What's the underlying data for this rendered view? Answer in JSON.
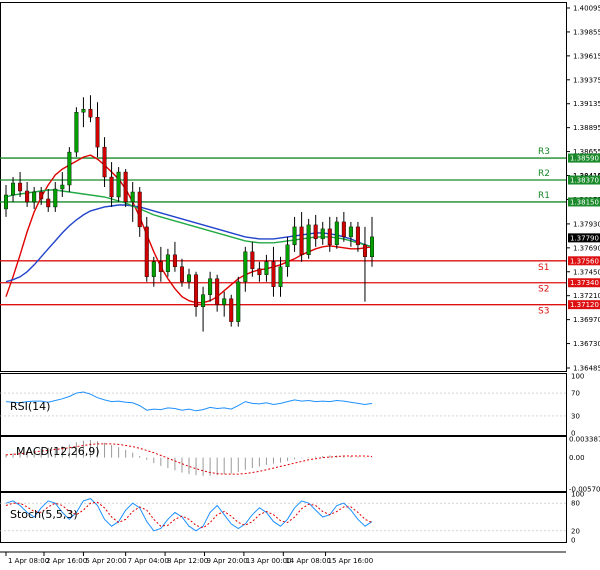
{
  "chart_data": {
    "type": "candlestick",
    "price_axis": {
      "ticks": [
        "1.40095",
        "1.39855",
        "1.39615",
        "1.39375",
        "1.39135",
        "1.38895",
        "1.38655",
        "1.38415",
        "1.38175",
        "1.37930",
        "1.37690",
        "1.37450",
        "1.37210",
        "1.36970",
        "1.36730",
        "1.36485"
      ],
      "ylim": [
        1.36485,
        1.40095
      ]
    },
    "time_axis": {
      "ticks": [
        "1 Apr 08:00",
        "2 Apr 16:00",
        "5 Apr 20:00",
        "7 Apr 04:00",
        "8 Apr 12:00",
        "9 Apr 20:00",
        "13 Apr 00:00",
        "14 Apr 08:00",
        "15 Apr 16:00"
      ]
    },
    "candles": [
      {
        "o": 1.3808,
        "h": 1.3832,
        "l": 1.38,
        "c": 1.3822
      },
      {
        "o": 1.3822,
        "h": 1.384,
        "l": 1.3815,
        "c": 1.3834
      },
      {
        "o": 1.3834,
        "h": 1.3845,
        "l": 1.382,
        "c": 1.3826
      },
      {
        "o": 1.3826,
        "h": 1.3835,
        "l": 1.381,
        "c": 1.3815
      },
      {
        "o": 1.3815,
        "h": 1.383,
        "l": 1.3808,
        "c": 1.3825
      },
      {
        "o": 1.3825,
        "h": 1.383,
        "l": 1.3812,
        "c": 1.3818
      },
      {
        "o": 1.3818,
        "h": 1.3828,
        "l": 1.3805,
        "c": 1.381
      },
      {
        "o": 1.381,
        "h": 1.3835,
        "l": 1.3805,
        "c": 1.3828
      },
      {
        "o": 1.3828,
        "h": 1.3845,
        "l": 1.382,
        "c": 1.3832
      },
      {
        "o": 1.3832,
        "h": 1.387,
        "l": 1.3825,
        "c": 1.3865
      },
      {
        "o": 1.3865,
        "h": 1.391,
        "l": 1.386,
        "c": 1.3905
      },
      {
        "o": 1.3905,
        "h": 1.392,
        "l": 1.389,
        "c": 1.3908
      },
      {
        "o": 1.3908,
        "h": 1.3922,
        "l": 1.3895,
        "c": 1.39
      },
      {
        "o": 1.39,
        "h": 1.3915,
        "l": 1.386,
        "c": 1.387
      },
      {
        "o": 1.387,
        "h": 1.388,
        "l": 1.383,
        "c": 1.384
      },
      {
        "o": 1.384,
        "h": 1.3855,
        "l": 1.381,
        "c": 1.382
      },
      {
        "o": 1.382,
        "h": 1.385,
        "l": 1.3815,
        "c": 1.3845
      },
      {
        "o": 1.3845,
        "h": 1.3848,
        "l": 1.381,
        "c": 1.3815
      },
      {
        "o": 1.3815,
        "h": 1.3835,
        "l": 1.3795,
        "c": 1.3825
      },
      {
        "o": 1.3825,
        "h": 1.383,
        "l": 1.378,
        "c": 1.379
      },
      {
        "o": 1.379,
        "h": 1.38,
        "l": 1.3735,
        "c": 1.374
      },
      {
        "o": 1.374,
        "h": 1.376,
        "l": 1.373,
        "c": 1.3755
      },
      {
        "o": 1.3755,
        "h": 1.377,
        "l": 1.3735,
        "c": 1.3745
      },
      {
        "o": 1.3745,
        "h": 1.3768,
        "l": 1.374,
        "c": 1.3762
      },
      {
        "o": 1.3762,
        "h": 1.3775,
        "l": 1.3745,
        "c": 1.375
      },
      {
        "o": 1.375,
        "h": 1.3758,
        "l": 1.373,
        "c": 1.3735
      },
      {
        "o": 1.3735,
        "h": 1.3748,
        "l": 1.3728,
        "c": 1.3742
      },
      {
        "o": 1.3742,
        "h": 1.3745,
        "l": 1.37,
        "c": 1.371
      },
      {
        "o": 1.371,
        "h": 1.373,
        "l": 1.3685,
        "c": 1.3722
      },
      {
        "o": 1.3722,
        "h": 1.3745,
        "l": 1.3715,
        "c": 1.3738
      },
      {
        "o": 1.3738,
        "h": 1.3742,
        "l": 1.3705,
        "c": 1.3712
      },
      {
        "o": 1.3712,
        "h": 1.3725,
        "l": 1.37,
        "c": 1.3718
      },
      {
        "o": 1.3718,
        "h": 1.3722,
        "l": 1.369,
        "c": 1.3695
      },
      {
        "o": 1.3695,
        "h": 1.374,
        "l": 1.369,
        "c": 1.3735
      },
      {
        "o": 1.3735,
        "h": 1.377,
        "l": 1.3725,
        "c": 1.3765
      },
      {
        "o": 1.3765,
        "h": 1.3775,
        "l": 1.374,
        "c": 1.3748
      },
      {
        "o": 1.3748,
        "h": 1.3755,
        "l": 1.3735,
        "c": 1.3742
      },
      {
        "o": 1.3742,
        "h": 1.3762,
        "l": 1.3735,
        "c": 1.3755
      },
      {
        "o": 1.3755,
        "h": 1.377,
        "l": 1.372,
        "c": 1.373
      },
      {
        "o": 1.373,
        "h": 1.376,
        "l": 1.372,
        "c": 1.375
      },
      {
        "o": 1.375,
        "h": 1.378,
        "l": 1.374,
        "c": 1.3772
      },
      {
        "o": 1.3772,
        "h": 1.38,
        "l": 1.3765,
        "c": 1.379
      },
      {
        "o": 1.379,
        "h": 1.3805,
        "l": 1.3755,
        "c": 1.3762
      },
      {
        "o": 1.3762,
        "h": 1.3798,
        "l": 1.3758,
        "c": 1.3792
      },
      {
        "o": 1.3792,
        "h": 1.3802,
        "l": 1.377,
        "c": 1.3778
      },
      {
        "o": 1.3778,
        "h": 1.3795,
        "l": 1.3772,
        "c": 1.3788
      },
      {
        "o": 1.3788,
        "h": 1.38,
        "l": 1.3765,
        "c": 1.3772
      },
      {
        "o": 1.3772,
        "h": 1.38,
        "l": 1.3768,
        "c": 1.3795
      },
      {
        "o": 1.3795,
        "h": 1.3805,
        "l": 1.3775,
        "c": 1.378
      },
      {
        "o": 1.378,
        "h": 1.3795,
        "l": 1.377,
        "c": 1.379
      },
      {
        "o": 1.379,
        "h": 1.3795,
        "l": 1.3765,
        "c": 1.3772
      },
      {
        "o": 1.3772,
        "h": 1.379,
        "l": 1.3715,
        "c": 1.376
      },
      {
        "o": 1.376,
        "h": 1.38,
        "l": 1.375,
        "c": 1.378
      }
    ],
    "moving_averages": [
      {
        "color": "#e00000",
        "values": [
          1.372,
          1.374,
          1.3762,
          1.3785,
          1.3805,
          1.382,
          1.3832,
          1.3842,
          1.3848,
          1.3852,
          1.3856,
          1.386,
          1.3862,
          1.3858,
          1.3852,
          1.3845,
          1.3838,
          1.3828,
          1.3815,
          1.38,
          1.3782,
          1.3765,
          1.375,
          1.3738,
          1.3728,
          1.372,
          1.3716,
          1.3714,
          1.3714,
          1.3716,
          1.372,
          1.3726,
          1.3732,
          1.3738,
          1.3742,
          1.3745,
          1.3747,
          1.3748,
          1.375,
          1.3752,
          1.3755,
          1.3758,
          1.3762,
          1.3765,
          1.3768,
          1.377,
          1.3771,
          1.377,
          1.3769,
          1.3768,
          1.3768,
          1.3769,
          1.377
        ]
      },
      {
        "color": "#2244cc",
        "values": [
          1.3735,
          1.3737,
          1.374,
          1.3745,
          1.3752,
          1.376,
          1.3768,
          1.3776,
          1.3784,
          1.3791,
          1.3797,
          1.3802,
          1.3806,
          1.3808,
          1.381,
          1.3811,
          1.3812,
          1.3812,
          1.3811,
          1.381,
          1.3808,
          1.3806,
          1.3804,
          1.3802,
          1.38,
          1.3798,
          1.3796,
          1.3794,
          1.3792,
          1.379,
          1.3788,
          1.3786,
          1.3784,
          1.3782,
          1.378,
          1.3779,
          1.3778,
          1.3778,
          1.3778,
          1.3779,
          1.378,
          1.3781,
          1.3782,
          1.3783,
          1.3784,
          1.3784,
          1.3783,
          1.3782,
          1.378,
          1.3778,
          1.3775,
          1.3772,
          1.377
        ]
      },
      {
        "color": "#22aa44",
        "values": [
          1.382,
          1.3822,
          1.3823,
          1.3824,
          1.3825,
          1.3826,
          1.3827,
          1.3827,
          1.3826,
          1.3825,
          1.3824,
          1.3823,
          1.3822,
          1.3821,
          1.382,
          1.3818,
          1.3816,
          1.3814,
          1.3811,
          1.3808,
          1.3805,
          1.3802,
          1.38,
          1.3798,
          1.3796,
          1.3794,
          1.3792,
          1.379,
          1.3788,
          1.3786,
          1.3784,
          1.3782,
          1.378,
          1.3778,
          1.3776,
          1.3775,
          1.3774,
          1.3774,
          1.3774,
          1.3775,
          1.3776,
          1.3777,
          1.3778,
          1.3779,
          1.378,
          1.378,
          1.378,
          1.3779,
          1.3778,
          1.3776,
          1.3774,
          1.3772,
          1.377
        ]
      }
    ],
    "levels": [
      {
        "label": "R3",
        "value": 1.3859,
        "value_text": "1.38590",
        "color": "#1a8a2a"
      },
      {
        "label": "R2",
        "value": 1.3837,
        "value_text": "1.38370",
        "color": "#1a8a2a"
      },
      {
        "label": "R1",
        "value": 1.3815,
        "value_text": "1.38150",
        "color": "#1a8a2a"
      },
      {
        "label": "S1",
        "value": 1.3756,
        "value_text": "1.37560",
        "color": "#dd1111"
      },
      {
        "label": "S2",
        "value": 1.3734,
        "value_text": "1.37340",
        "color": "#dd1111"
      },
      {
        "label": "S3",
        "value": 1.3712,
        "value_text": "1.37120",
        "color": "#dd1111"
      }
    ],
    "current_price": {
      "value": 1.3779,
      "value_text": "1.37790"
    },
    "extra_price_label": "1.38410",
    "rsi": {
      "title": "RSI(14)",
      "ticks": [
        "100",
        "70",
        "30",
        "0"
      ],
      "ylim": [
        0,
        100
      ],
      "color": "#1e90ff",
      "values": [
        55,
        54,
        53,
        55,
        56,
        56,
        54,
        57,
        60,
        64,
        70,
        72,
        68,
        62,
        58,
        55,
        56,
        54,
        53,
        48,
        40,
        42,
        41,
        44,
        43,
        40,
        42,
        39,
        41,
        45,
        43,
        44,
        42,
        48,
        55,
        52,
        51,
        53,
        50,
        52,
        55,
        58,
        56,
        57,
        55,
        56,
        55,
        57,
        56,
        54,
        52,
        50,
        52
      ]
    },
    "macd": {
      "title": "MACD(12,26,9)",
      "ticks": [
        "0.003387",
        "0.00",
        "-0.005701"
      ],
      "ylim": [
        -0.005701,
        0.003387
      ],
      "hist_color": "#999999",
      "signal_color": "#e00000",
      "histogram": [
        0.0006,
        0.0008,
        0.001,
        0.0012,
        0.0014,
        0.0016,
        0.0018,
        0.0019,
        0.0021,
        0.0024,
        0.0028,
        0.0031,
        0.0032,
        0.003,
        0.0027,
        0.0023,
        0.0019,
        0.0014,
        0.0009,
        0.0003,
        -0.0004,
        -0.001,
        -0.0015,
        -0.0019,
        -0.0023,
        -0.0027,
        -0.003,
        -0.0032,
        -0.0033,
        -0.0033,
        -0.0032,
        -0.003,
        -0.0029,
        -0.0026,
        -0.0022,
        -0.0019,
        -0.0016,
        -0.0013,
        -0.0011,
        -0.0009,
        -0.0006,
        -0.0003,
        -0.0001,
        0.0001,
        0.0002,
        0.0003,
        0.0004,
        0.0004,
        0.0004,
        0.0003,
        0.0002,
        0.0001,
        0.0001
      ],
      "signal": [
        0.0005,
        0.0006,
        0.0007,
        0.0009,
        0.001,
        0.0012,
        0.0013,
        0.0015,
        0.0016,
        0.0018,
        0.002,
        0.0022,
        0.0024,
        0.0025,
        0.0025,
        0.0025,
        0.0024,
        0.0022,
        0.002,
        0.0017,
        0.0013,
        0.0009,
        0.0004,
        -0.0001,
        -0.0006,
        -0.0011,
        -0.0016,
        -0.002,
        -0.0024,
        -0.0027,
        -0.0029,
        -0.003,
        -0.003,
        -0.003,
        -0.0029,
        -0.0027,
        -0.0025,
        -0.0022,
        -0.0019,
        -0.0016,
        -0.0013,
        -0.001,
        -0.0007,
        -0.0004,
        -0.0002,
        0.0,
        0.0001,
        0.0002,
        0.0003,
        0.0003,
        0.0003,
        0.0003,
        0.0002
      ]
    },
    "stoch": {
      "title": "Stoch(5,5,3)",
      "ticks": [
        "100",
        "80",
        "20",
        "0"
      ],
      "ylim": [
        0,
        100
      ],
      "main_color": "#1e90ff",
      "signal_color": "#e00000",
      "main": [
        80,
        85,
        75,
        60,
        50,
        70,
        85,
        80,
        60,
        45,
        60,
        85,
        90,
        75,
        45,
        30,
        40,
        65,
        80,
        70,
        40,
        20,
        25,
        45,
        60,
        50,
        30,
        20,
        30,
        60,
        75,
        55,
        35,
        25,
        35,
        55,
        70,
        60,
        40,
        30,
        45,
        70,
        85,
        80,
        65,
        50,
        55,
        75,
        80,
        65,
        45,
        30,
        40
      ],
      "signal": [
        75,
        80,
        80,
        72,
        62,
        60,
        72,
        80,
        75,
        62,
        55,
        65,
        80,
        82,
        70,
        50,
        38,
        45,
        62,
        72,
        65,
        45,
        30,
        32,
        45,
        52,
        45,
        32,
        26,
        38,
        55,
        62,
        52,
        38,
        32,
        40,
        55,
        62,
        55,
        42,
        38,
        50,
        68,
        78,
        75,
        62,
        55,
        62,
        72,
        72,
        60,
        45,
        38
      ]
    }
  }
}
